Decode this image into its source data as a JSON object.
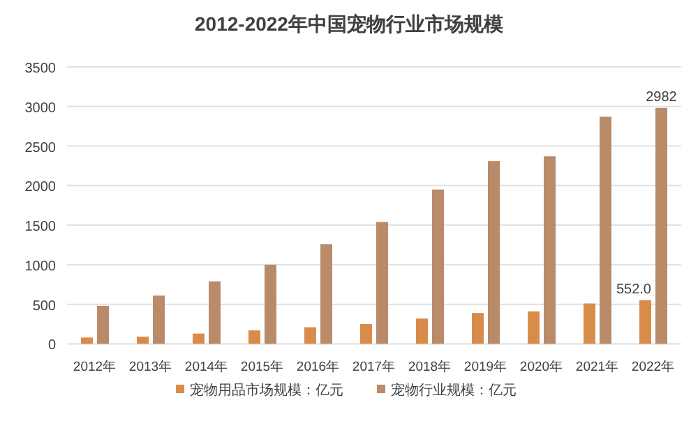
{
  "chart_data": {
    "type": "bar",
    "title": "2012-2022年中国宠物行业市场规模",
    "categories": [
      "2012年",
      "2013年",
      "2014年",
      "2015年",
      "2016年",
      "2017年",
      "2018年",
      "2019年",
      "2020年",
      "2021年",
      "2022年"
    ],
    "series": [
      {
        "name": "宠物用品市场规模：亿元",
        "color": "#d98c4a",
        "values": [
          80,
          90,
          130,
          170,
          210,
          250,
          320,
          390,
          410,
          510,
          552.0
        ],
        "value_labels": [
          null,
          null,
          null,
          null,
          null,
          null,
          null,
          null,
          null,
          null,
          "552.0"
        ]
      },
      {
        "name": "宠物行业规模：亿元",
        "color": "#b98b69",
        "values": [
          480,
          610,
          790,
          1000,
          1260,
          1540,
          1950,
          2310,
          2370,
          2870,
          2982
        ],
        "value_labels": [
          null,
          null,
          null,
          null,
          null,
          null,
          null,
          null,
          null,
          null,
          "2982"
        ]
      }
    ],
    "ylim": [
      0,
      3500
    ],
    "yticks": [
      0,
      500,
      1000,
      1500,
      2000,
      2500,
      3000,
      3500
    ],
    "grid": "y",
    "legend": "bottom"
  }
}
